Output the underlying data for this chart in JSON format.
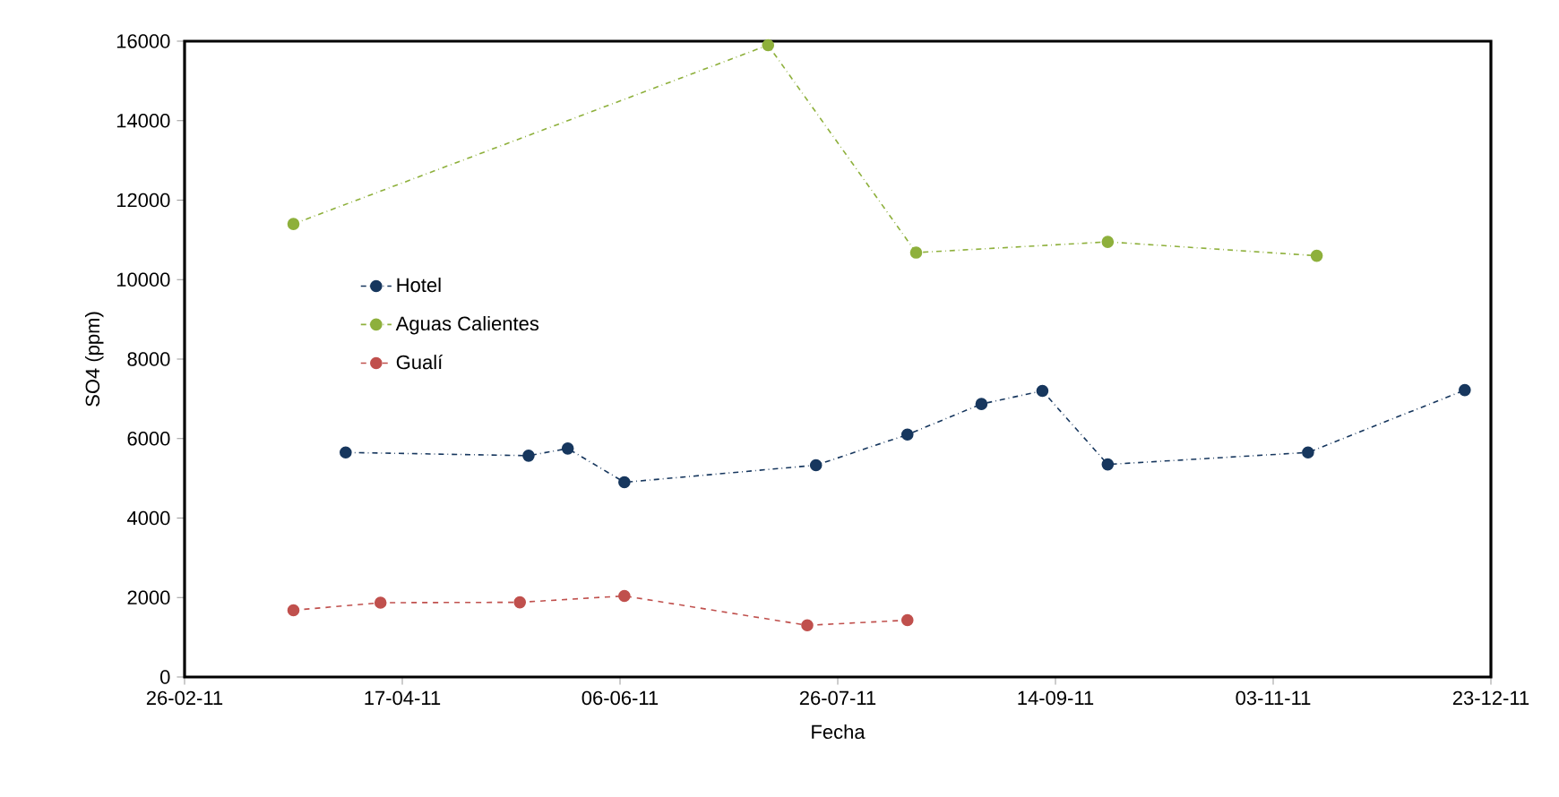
{
  "chart_data": {
    "type": "line",
    "xlabel": "Fecha",
    "ylabel": "SO4  (ppm)",
    "xlim": [
      "2011-02-26",
      "2011-12-23"
    ],
    "xticks": [
      {
        "value": "2011-02-26",
        "label": "26-02-11"
      },
      {
        "value": "2011-04-17",
        "label": "17-04-11"
      },
      {
        "value": "2011-06-06",
        "label": "06-06-11"
      },
      {
        "value": "2011-07-26",
        "label": "26-07-11"
      },
      {
        "value": "2011-09-14",
        "label": "14-09-11"
      },
      {
        "value": "2011-11-03",
        "label": "03-11-11"
      },
      {
        "value": "2011-12-23",
        "label": "23-12-11"
      }
    ],
    "ylim": [
      0,
      16000
    ],
    "yticks": [
      0,
      2000,
      4000,
      6000,
      8000,
      10000,
      12000,
      14000,
      16000
    ],
    "grid": false,
    "legend": "top left",
    "marker": "circle",
    "series": [
      {
        "name": "Hotel",
        "color": "#17375e",
        "line_style": "dashdot",
        "x": [
          "2011-04-04",
          "2011-05-16",
          "2011-05-25",
          "2011-06-07",
          "2011-07-21",
          "2011-08-11",
          "2011-08-28",
          "2011-09-11",
          "2011-09-26",
          "2011-11-11",
          "2011-12-17"
        ],
        "values": [
          5650,
          5570,
          5750,
          4900,
          5330,
          6100,
          6870,
          7200,
          5350,
          5650,
          7220
        ]
      },
      {
        "name": "Aguas Calientes",
        "color": "#8eb03c",
        "line_style": "dashdot",
        "x": [
          "2011-03-23",
          "2011-07-10",
          "2011-08-13",
          "2011-09-26",
          "2011-11-13"
        ],
        "values": [
          11400,
          15900,
          10680,
          10950,
          10600
        ]
      },
      {
        "name": "Gualí",
        "color": "#c0504d",
        "line_style": "dashed",
        "x": [
          "2011-03-23",
          "2011-04-12",
          "2011-05-14",
          "2011-06-07",
          "2011-07-19",
          "2011-08-11"
        ],
        "values": [
          1680,
          1870,
          1880,
          2040,
          1300,
          1430
        ]
      }
    ]
  }
}
